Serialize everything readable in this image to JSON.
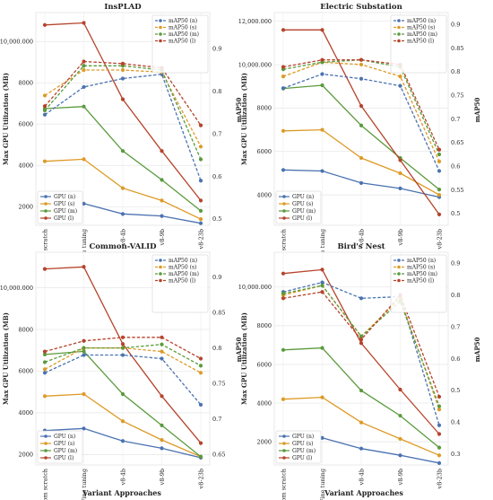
{
  "figure": {
    "xlabel": "Variant Approaches"
  },
  "chart_data": [
    {
      "type": "line",
      "title": "InsPLAD",
      "categories": [
        "From scratch",
        "Fine tuning",
        "v8-4b",
        "v8-9b",
        "v8-23b"
      ],
      "ylabel": "Max GPU Utilization (MB)",
      "ylabel_right": "mAP50",
      "ylim": [
        1100,
        11400
      ],
      "ylim_right": [
        0.485,
        0.985
      ],
      "yticks": [
        2000,
        4000,
        6000,
        8000,
        10000
      ],
      "yticks_right": [
        0.5,
        0.6,
        0.7,
        0.8,
        0.9
      ],
      "series": [
        {
          "name": "GPU (n)",
          "color": "#4a72b0",
          "axis": "left",
          "dash": false,
          "values": [
            null,
            2150,
            1650,
            1550,
            1200
          ]
        },
        {
          "name": "GPU (s)",
          "color": "#dd9a26",
          "axis": "left",
          "dash": false,
          "values": [
            4200,
            4300,
            2900,
            2300,
            1400
          ]
        },
        {
          "name": "GPU (m)",
          "color": "#5a9a3c",
          "axis": "left",
          "dash": false,
          "values": [
            6750,
            6850,
            4700,
            3300,
            1800
          ]
        },
        {
          "name": "GPU (l)",
          "color": "#b5432b",
          "axis": "left",
          "dash": false,
          "values": [
            10800,
            10900,
            7200,
            4700,
            2300
          ]
        },
        {
          "name": "mAP50 (n)",
          "color": "#4a72b0",
          "axis": "right",
          "dash": true,
          "values": [
            0.745,
            0.81,
            0.83,
            0.84,
            0.59
          ]
        },
        {
          "name": "mAP50 (s)",
          "color": "#dd9a26",
          "axis": "right",
          "dash": true,
          "values": [
            0.79,
            0.85,
            0.85,
            0.845,
            0.67
          ]
        },
        {
          "name": "mAP50 (m)",
          "color": "#5a9a3c",
          "axis": "right",
          "dash": true,
          "values": [
            0.755,
            0.86,
            0.86,
            0.85,
            0.64
          ]
        },
        {
          "name": "mAP50 (l)",
          "color": "#b5432b",
          "axis": "right",
          "dash": true,
          "values": [
            0.765,
            0.87,
            0.865,
            0.855,
            0.72
          ]
        }
      ]
    },
    {
      "type": "line",
      "title": "Electric Substation",
      "categories": [
        "From scratch",
        "Fine tuning",
        "v8-4b",
        "v8-9b",
        "v8-23b"
      ],
      "ylabel": "Max GPU Utilization (MB)",
      "ylabel_right": "mAP50",
      "ylim": [
        2600,
        12400
      ],
      "ylim_right": [
        0.475,
        0.925
      ],
      "yticks": [
        4000,
        6000,
        8000,
        10000,
        12000
      ],
      "yticks_right": [
        0.5,
        0.55,
        0.6,
        0.65,
        0.7,
        0.75,
        0.8,
        0.85,
        0.9
      ],
      "series": [
        {
          "name": "GPU (n)",
          "color": "#4a72b0",
          "axis": "left",
          "dash": false,
          "values": [
            5150,
            5100,
            4550,
            4300,
            3900
          ]
        },
        {
          "name": "GPU (s)",
          "color": "#dd9a26",
          "axis": "left",
          "dash": false,
          "values": [
            6950,
            7000,
            5700,
            5000,
            4000
          ]
        },
        {
          "name": "GPU (m)",
          "color": "#5a9a3c",
          "axis": "left",
          "dash": false,
          "values": [
            8900,
            9050,
            7200,
            5700,
            4250
          ]
        },
        {
          "name": "GPU (l)",
          "color": "#b5432b",
          "axis": "left",
          "dash": false,
          "values": [
            11600,
            11600,
            8100,
            5600,
            3100
          ]
        },
        {
          "name": "mAP50 (n)",
          "color": "#4a72b0",
          "axis": "right",
          "dash": true,
          "values": [
            0.765,
            0.795,
            0.785,
            0.77,
            0.59
          ]
        },
        {
          "name": "mAP50 (s)",
          "color": "#dd9a26",
          "axis": "right",
          "dash": true,
          "values": [
            0.79,
            0.82,
            0.815,
            0.79,
            0.61
          ]
        },
        {
          "name": "mAP50 (m)",
          "color": "#5a9a3c",
          "axis": "right",
          "dash": true,
          "values": [
            0.805,
            0.82,
            0.825,
            0.81,
            0.625
          ]
        },
        {
          "name": "mAP50 (l)",
          "color": "#b5432b",
          "axis": "right",
          "dash": true,
          "values": [
            0.81,
            0.825,
            0.825,
            0.815,
            0.635
          ]
        }
      ]
    },
    {
      "type": "line",
      "title": "Common-VALID",
      "categories": [
        "From scratch",
        "Fine tuning",
        "v8-4b",
        "v8-9b",
        "v8-23b"
      ],
      "ylabel": "Max GPU Utilization (MB)",
      "ylabel_right": "mAP50",
      "ylim": [
        1500,
        11700
      ],
      "ylim_right": [
        0.635,
        0.935
      ],
      "yticks": [
        2000,
        4000,
        6000,
        8000,
        10000
      ],
      "yticks_right": [
        0.65,
        0.7,
        0.75,
        0.8,
        0.85,
        0.9
      ],
      "series": [
        {
          "name": "GPU (n)",
          "color": "#4a72b0",
          "axis": "left",
          "dash": false,
          "values": [
            3150,
            3250,
            2650,
            2300,
            1850
          ]
        },
        {
          "name": "GPU (s)",
          "color": "#dd9a26",
          "axis": "left",
          "dash": false,
          "values": [
            4800,
            4900,
            3600,
            2700,
            1900
          ]
        },
        {
          "name": "GPU (m)",
          "color": "#5a9a3c",
          "axis": "left",
          "dash": false,
          "values": [
            6800,
            6950,
            4900,
            3400,
            1900
          ]
        },
        {
          "name": "GPU (l)",
          "color": "#b5432b",
          "axis": "left",
          "dash": false,
          "values": [
            10900,
            11000,
            7300,
            4800,
            2550
          ]
        },
        {
          "name": "mAP50 (n)",
          "color": "#4a72b0",
          "axis": "right",
          "dash": true,
          "values": [
            0.765,
            0.79,
            0.79,
            0.785,
            0.72
          ]
        },
        {
          "name": "mAP50 (s)",
          "color": "#dd9a26",
          "axis": "right",
          "dash": true,
          "values": [
            0.77,
            0.8,
            0.8,
            0.795,
            0.765
          ]
        },
        {
          "name": "mAP50 (m)",
          "color": "#5a9a3c",
          "axis": "right",
          "dash": true,
          "values": [
            0.78,
            0.8,
            0.8,
            0.805,
            0.775
          ]
        },
        {
          "name": "mAP50 (l)",
          "color": "#b5432b",
          "axis": "right",
          "dash": true,
          "values": [
            0.795,
            0.81,
            0.815,
            0.815,
            0.785
          ]
        }
      ]
    },
    {
      "type": "line",
      "title": "Bird's Nest",
      "categories": [
        "From scratch",
        "Fine tuning",
        "v8-4b",
        "v8-9b",
        "v8-23b"
      ],
      "ylabel": "Max GPU Utilization (MB)",
      "ylabel_right": "mAP50",
      "ylim": [
        800,
        11800
      ],
      "ylim_right": [
        0.265,
        0.935
      ],
      "yticks": [
        2000,
        4000,
        6000,
        8000,
        10000
      ],
      "yticks_right": [
        0.3,
        0.4,
        0.5,
        0.6,
        0.7,
        0.8,
        0.9
      ],
      "series": [
        {
          "name": "GPU (n)",
          "color": "#4a72b0",
          "axis": "left",
          "dash": false,
          "values": [
            null,
            2200,
            1650,
            1300,
            900
          ]
        },
        {
          "name": "GPU (s)",
          "color": "#dd9a26",
          "axis": "left",
          "dash": false,
          "values": [
            4200,
            4300,
            3000,
            2150,
            1300
          ]
        },
        {
          "name": "GPU (m)",
          "color": "#5a9a3c",
          "axis": "left",
          "dash": false,
          "values": [
            6750,
            6850,
            4650,
            3350,
            1700
          ]
        },
        {
          "name": "GPU (l)",
          "color": "#b5432b",
          "axis": "left",
          "dash": false,
          "values": [
            10700,
            10900,
            7100,
            4700,
            2400
          ]
        },
        {
          "name": "mAP50 (n)",
          "color": "#4a72b0",
          "axis": "right",
          "dash": true,
          "values": [
            0.81,
            0.84,
            0.79,
            0.795,
            0.39
          ]
        },
        {
          "name": "mAP50 (s)",
          "color": "#dd9a26",
          "axis": "right",
          "dash": true,
          "values": [
            0.8,
            0.83,
            0.67,
            0.79,
            0.44
          ]
        },
        {
          "name": "mAP50 (m)",
          "color": "#5a9a3c",
          "axis": "right",
          "dash": true,
          "values": [
            0.805,
            0.83,
            0.67,
            0.78,
            0.45
          ]
        },
        {
          "name": "mAP50 (l)",
          "color": "#b5432b",
          "axis": "right",
          "dash": true,
          "values": [
            0.79,
            0.81,
            0.66,
            0.8,
            0.48
          ]
        }
      ]
    }
  ]
}
